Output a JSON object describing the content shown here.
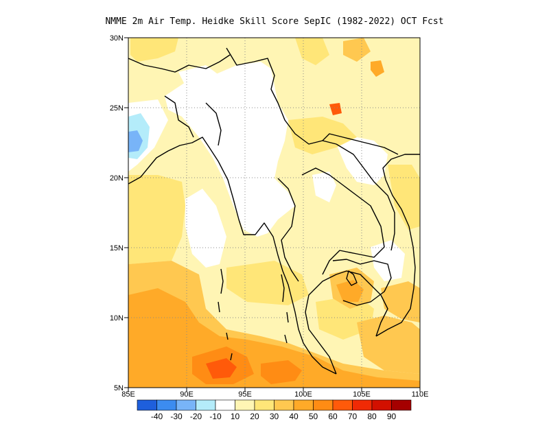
{
  "title": "NMME  2m Air Temp. Heidke Skill Score SepIC (1982-2022) OCT Fcst",
  "map": {
    "lon_range": [
      85,
      110
    ],
    "lat_range": [
      5,
      30
    ],
    "x_ticks": [
      "85E",
      "90E",
      "95E",
      "100E",
      "105E",
      "110E"
    ],
    "y_ticks": [
      "30N",
      "25N",
      "20N",
      "15N",
      "10N",
      "5N"
    ],
    "grid": "dotted"
  },
  "colorbar": {
    "colors": [
      "#1e5fdc",
      "#3c8cf0",
      "#78b4f8",
      "#b4ecfa",
      "#ffffff",
      "#fff5b4",
      "#ffe678",
      "#ffc850",
      "#ffaa28",
      "#ff8c14",
      "#ff5a0a",
      "#f02a05",
      "#d21000",
      "#a50000"
    ],
    "labels": [
      "-40",
      "-30",
      "-20",
      "-10",
      "10",
      "20",
      "30",
      "40",
      "50",
      "60",
      "70",
      "80",
      "90"
    ]
  }
}
